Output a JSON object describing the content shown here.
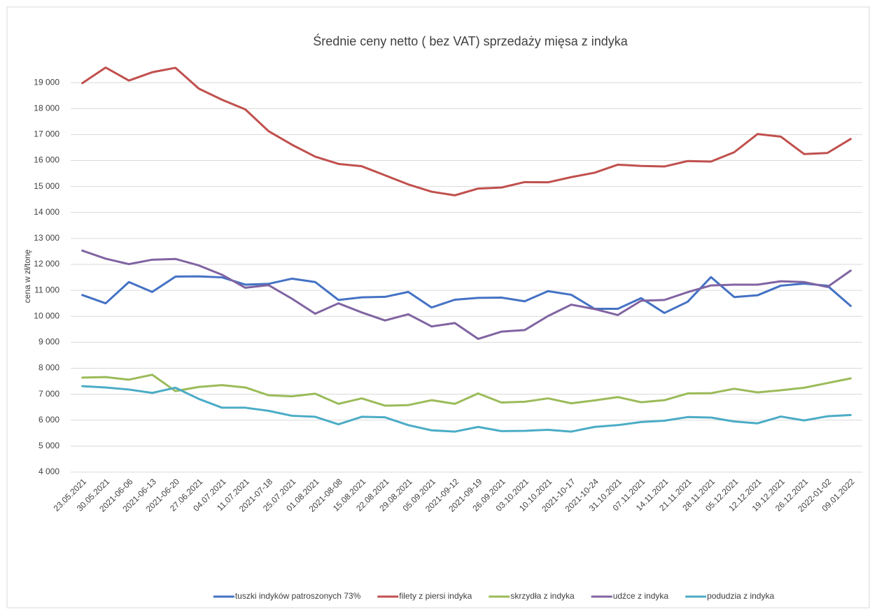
{
  "chart_data": {
    "type": "line",
    "title": "Średnie ceny netto ( bez VAT) sprzedaży mięsa z indyka",
    "y_label": "cena w zł/tonę",
    "categories": [
      "23.05.2021",
      "30.05.2021",
      "2021-06-06",
      "2021-06-13",
      "2021-06-20",
      "27.06.2021",
      "04.07.2021",
      "11.07.2021",
      "2021-07-18",
      "25.07.2021",
      "01.08.2021",
      "2021-08-08",
      "15.08.2021",
      "22.08.2021",
      "29.08.2021",
      "05.09.2021",
      "2021-09-12",
      "2021-09-19",
      "26.09.2021",
      "03.10.2021",
      "10.10.2021",
      "2021-10-17",
      "2021-10-24",
      "31.10.2021",
      "07.11.2021",
      "14.11.2021",
      "21.11.2021",
      "28.11.2021",
      "05.12.2021",
      "12.12.2021",
      "19.12.2021",
      "26.12.2021",
      "2022-01-02",
      "09.01.2022"
    ],
    "series": [
      {
        "name": "tuszki indyków patroszonych 73%",
        "color": "#4472c4",
        "values": [
          10820,
          10500,
          11320,
          10940,
          11530,
          11540,
          11500,
          11220,
          11250,
          11450,
          11320,
          10630,
          10730,
          10750,
          10940,
          10340,
          10640,
          10710,
          10720,
          10580,
          10970,
          10830,
          10290,
          10290,
          10700,
          10130,
          10560,
          11510,
          10740,
          10810,
          11180,
          11260,
          11180,
          10400
        ]
      },
      {
        "name": "filety z piersi indyka",
        "color": "#c0504d",
        "values": [
          18980,
          19580,
          19080,
          19400,
          19570,
          18770,
          18340,
          17970,
          17130,
          16610,
          16150,
          15870,
          15780,
          15430,
          15080,
          14800,
          14660,
          14920,
          14960,
          15170,
          15160,
          15360,
          15530,
          15840,
          15790,
          15770,
          15980,
          15960,
          16320,
          17020,
          16920,
          16250,
          16290,
          16830
        ]
      },
      {
        "name": "skrzydła z indyka",
        "color": "#9bbb59",
        "values": [
          7640,
          7660,
          7560,
          7750,
          7120,
          7280,
          7350,
          7260,
          6960,
          6920,
          7020,
          6630,
          6840,
          6560,
          6580,
          6770,
          6630,
          7030,
          6680,
          6710,
          6840,
          6650,
          6760,
          6890,
          6690,
          6770,
          7030,
          7040,
          7210,
          7070,
          7150,
          7250,
          7430,
          7610
        ]
      },
      {
        "name": "udźce z indyka",
        "color": "#8064a2",
        "values": [
          12530,
          12220,
          12010,
          12180,
          12210,
          11960,
          11600,
          11100,
          11200,
          10680,
          10100,
          10500,
          10150,
          9840,
          10080,
          9610,
          9740,
          9130,
          9410,
          9470,
          10010,
          10450,
          10280,
          10050,
          10600,
          10630,
          10930,
          11190,
          11220,
          11220,
          11350,
          11320,
          11130,
          11760
        ]
      },
      {
        "name": "podudzia z indyka",
        "color": "#4bacc6",
        "values": [
          7310,
          7260,
          7180,
          7050,
          7250,
          6820,
          6480,
          6480,
          6360,
          6170,
          6130,
          5840,
          6130,
          6110,
          5810,
          5610,
          5560,
          5740,
          5580,
          5590,
          5630,
          5560,
          5740,
          5810,
          5930,
          5980,
          6120,
          6100,
          5950,
          5880,
          6140,
          5990,
          6150,
          6200
        ]
      }
    ],
    "ylim": [
      4000,
      20000
    ],
    "yticks": [
      {
        "value": 4000,
        "label": "4 000"
      },
      {
        "value": 5000,
        "label": "5 000"
      },
      {
        "value": 6000,
        "label": "6 000"
      },
      {
        "value": 7000,
        "label": "7 000"
      },
      {
        "value": 8000,
        "label": "8 000"
      },
      {
        "value": 9000,
        "label": "9 000"
      },
      {
        "value": 10000,
        "label": "10 000"
      },
      {
        "value": 11000,
        "label": "11 000"
      },
      {
        "value": 12000,
        "label": "12 000"
      },
      {
        "value": 13000,
        "label": "13 000"
      },
      {
        "value": 14000,
        "label": "14 000"
      },
      {
        "value": 15000,
        "label": "15 000"
      },
      {
        "value": 16000,
        "label": "16 000"
      },
      {
        "value": 17000,
        "label": "17 000"
      },
      {
        "value": 18000,
        "label": "18 000"
      },
      {
        "value": 19000,
        "label": "19 000"
      }
    ],
    "grid": true,
    "legend": "bottom"
  }
}
